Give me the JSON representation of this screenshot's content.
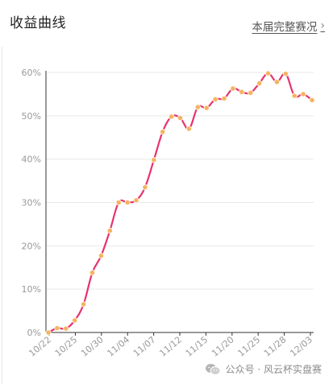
{
  "header": {
    "title": "收益曲线",
    "more_link": "本届完整赛况",
    "more_chevron": "›"
  },
  "watermark": {
    "text": "公众号 · 风云杯实盘赛",
    "icon": "wechat-icon"
  },
  "colors": {
    "line": "#e8336d",
    "marker": "#f5b461",
    "grid": "#e9e9e9",
    "axis": "#333333"
  },
  "chart_data": {
    "type": "line",
    "xlabel": "",
    "ylabel": "",
    "ylim": [
      0,
      60
    ],
    "y_ticks": [
      0,
      10,
      20,
      30,
      40,
      50,
      60
    ],
    "y_tick_labels": [
      "0%",
      "10%",
      "20%",
      "30%",
      "40%",
      "50%",
      "60%"
    ],
    "x_tick_labels": [
      "10/22",
      "10/25",
      "10/30",
      "11/04",
      "11/07",
      "11/12",
      "11/15",
      "11/20",
      "11/25",
      "11/28",
      "12/03"
    ],
    "grid": "horizontal",
    "series": [
      {
        "values": [
          0.0,
          1.0,
          0.9,
          2.8,
          6.5,
          13.8,
          17.7,
          23.5,
          30.0,
          30.0,
          30.5,
          33.5,
          39.8,
          46.3,
          49.8,
          49.5,
          47.0,
          52.0,
          51.8,
          53.8,
          54.0,
          56.3,
          55.5,
          55.3,
          57.5,
          59.8,
          57.8,
          59.7,
          54.6,
          55.0,
          53.6
        ]
      }
    ]
  }
}
